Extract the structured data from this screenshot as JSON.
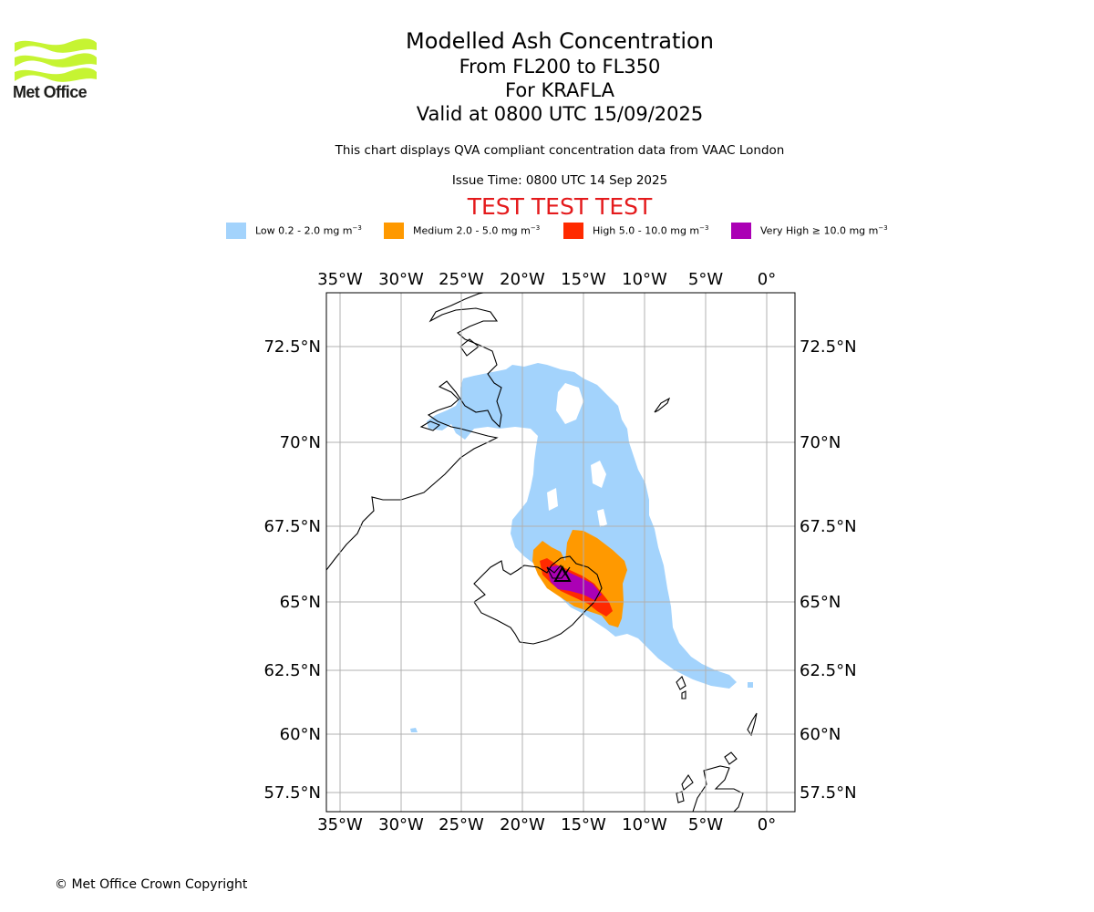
{
  "logo": {
    "text": "Met Office"
  },
  "titles": {
    "main": "Modelled Ash Concentration",
    "levels": "From FL200 to FL350",
    "volcano": "For KRAFLA",
    "valid": "Valid at 0800 UTC 15/09/2025"
  },
  "description": "This chart displays QVA compliant concentration data from VAAC London",
  "issue_time": "Issue Time: 0800 UTC 14 Sep 2025",
  "test_banner": "TEST TEST TEST",
  "legend": [
    {
      "label": "Low 0.2 - 2.0 mg m",
      "color": "#a3d3fc"
    },
    {
      "label": "Medium 2.0 - 5.0 mg m",
      "color": "#ff9900"
    },
    {
      "label": "High 5.0 - 10.0 mg m",
      "color": "#ff2a00"
    },
    {
      "label": "Very High ≥ 10.0 mg m",
      "color": "#ab00b5"
    }
  ],
  "legend_unit_exp": "−3",
  "map": {
    "lon_ticks": [
      "35°W",
      "30°W",
      "25°W",
      "20°W",
      "15°W",
      "10°W",
      "5°W",
      "0°"
    ],
    "lat_ticks": [
      "72.5°N",
      "70°N",
      "67.5°N",
      "65°N",
      "62.5°N",
      "60°N",
      "57.5°N"
    ],
    "volcano_marker": "triangle",
    "colors": {
      "low": "#a3d3fc",
      "medium": "#ff9900",
      "high": "#ff2a00",
      "very_high": "#ab00b5",
      "grid": "#b0b0b0"
    }
  },
  "footer": "© Met Office Crown Copyright"
}
